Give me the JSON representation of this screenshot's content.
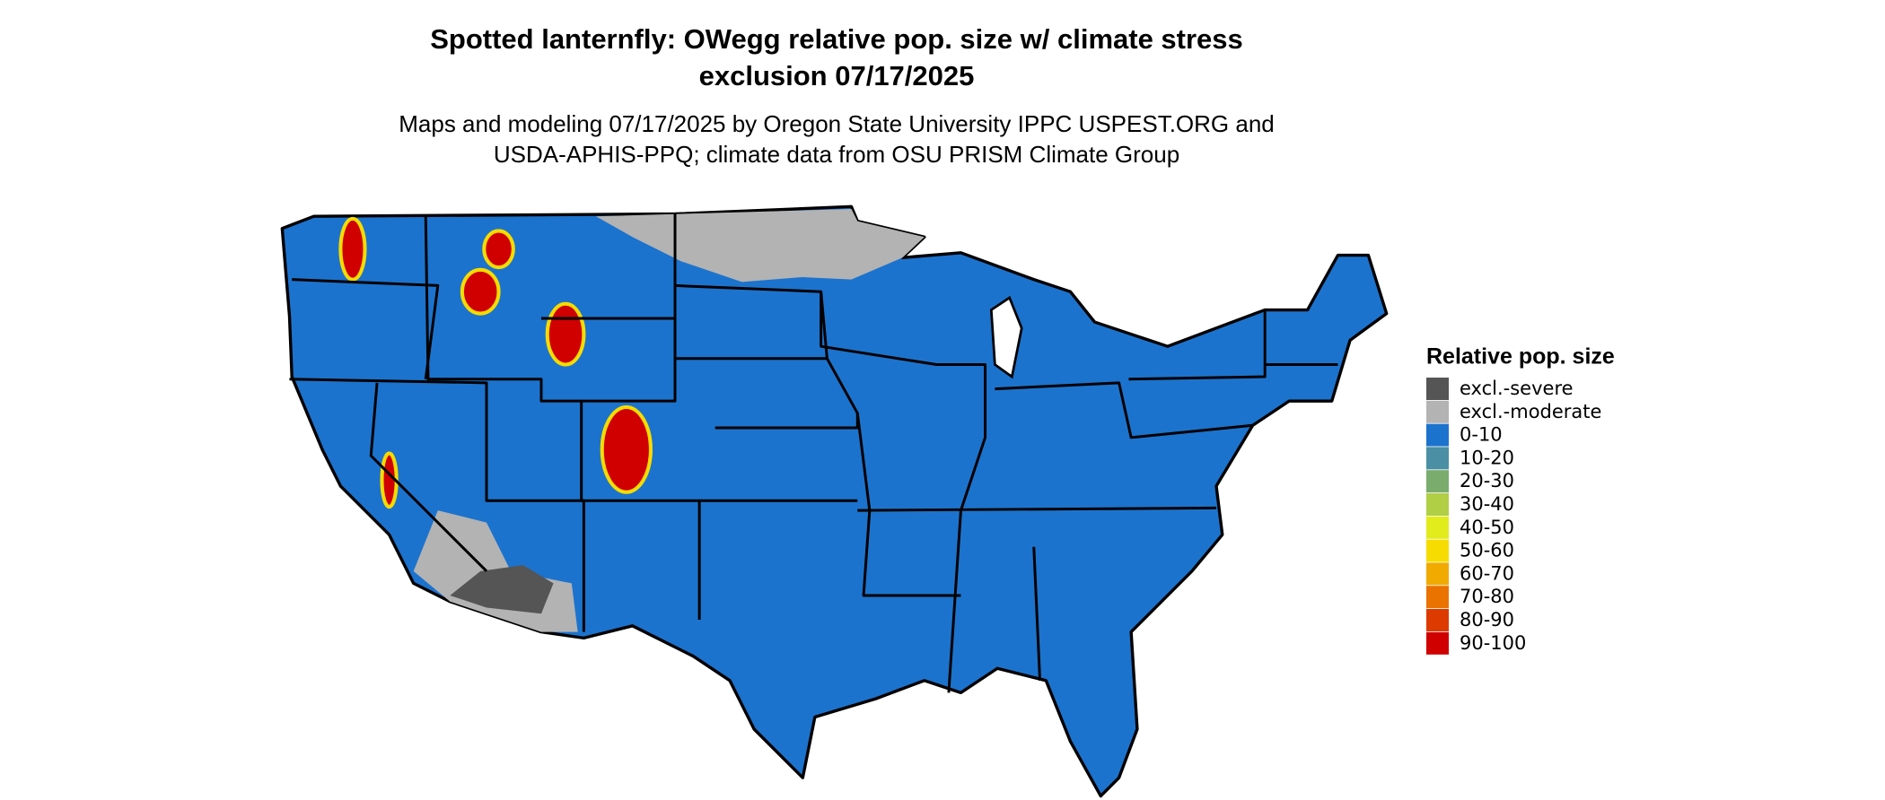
{
  "title_lines": [
    "Spotted lanternfly: OWegg relative pop. size w/ climate stress",
    "exclusion 07/17/2025"
  ],
  "subtitle_lines": [
    "Maps and modeling 07/17/2025 by Oregon State University IPPC USPEST.ORG and",
    "USDA-APHIS-PPQ; climate data from OSU PRISM Climate Group"
  ],
  "legend": {
    "title": "Relative pop. size",
    "items": [
      {
        "label": "excl.-severe",
        "color": "#555555"
      },
      {
        "label": "excl.-moderate",
        "color": "#b3b3b3"
      },
      {
        "label": "0-10",
        "color": "#1c73cd"
      },
      {
        "label": "10-20",
        "color": "#4a8fa3"
      },
      {
        "label": "20-30",
        "color": "#7aac6e"
      },
      {
        "label": "30-40",
        "color": "#b0cf44"
      },
      {
        "label": "40-50",
        "color": "#e2ec1c"
      },
      {
        "label": "50-60",
        "color": "#f6dc00"
      },
      {
        "label": "60-70",
        "color": "#f1aa00"
      },
      {
        "label": "70-80",
        "color": "#ea7300"
      },
      {
        "label": "80-90",
        "color": "#dd3a00"
      },
      {
        "label": "90-100",
        "color": "#d00000"
      }
    ]
  }
}
